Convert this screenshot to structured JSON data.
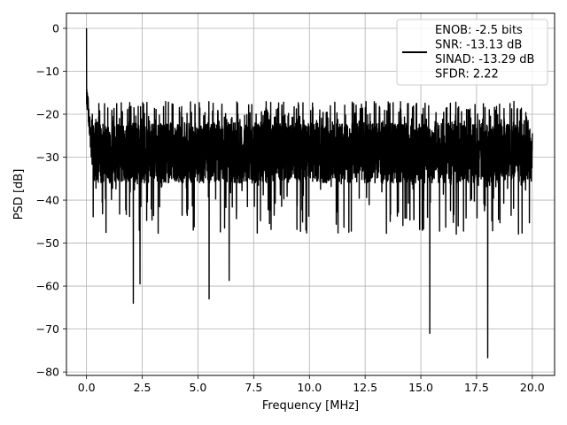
{
  "chart_data": {
    "type": "line",
    "title": "",
    "xlabel": "Frequency [MHz]",
    "ylabel": "PSD [dB]",
    "xlim": [
      -0.9,
      21.0
    ],
    "ylim": [
      -80.8,
      3.5
    ],
    "xticks": [
      0.0,
      2.5,
      5.0,
      7.5,
      10.0,
      12.5,
      15.0,
      17.5,
      20.0
    ],
    "xtick_labels": [
      "0.0",
      "2.5",
      "5.0",
      "7.5",
      "10.0",
      "12.5",
      "15.0",
      "17.5",
      "20.0"
    ],
    "yticks": [
      0,
      -10,
      -20,
      -30,
      -40,
      -50,
      -60,
      -70,
      -80
    ],
    "ytick_labels": [
      "0",
      "−10",
      "−20",
      "−30",
      "−40",
      "−50",
      "−60",
      "−70",
      "−80"
    ],
    "grid": true,
    "legend_position": "top-right",
    "line_color": "#000000",
    "series": [
      {
        "legend_lines": [
          "ENOB: -2.5 bits",
          "SNR: -13.13 dB",
          "SINAD: -13.29 dB",
          "SFDR: 2.22"
        ],
        "x_range": [
          0.0,
          20.0
        ],
        "approx_noise_floor_db": [
          -36,
          -22
        ],
        "peak_values": [
          {
            "x": 0.0,
            "y": 0
          },
          {
            "x": 2.1,
            "y": -64
          },
          {
            "x": 2.4,
            "y": -59.5
          },
          {
            "x": 5.5,
            "y": -63
          },
          {
            "x": 6.4,
            "y": -58.7
          },
          {
            "x": 15.4,
            "y": -71
          },
          {
            "x": 18.0,
            "y": -76.7
          }
        ]
      }
    ]
  }
}
